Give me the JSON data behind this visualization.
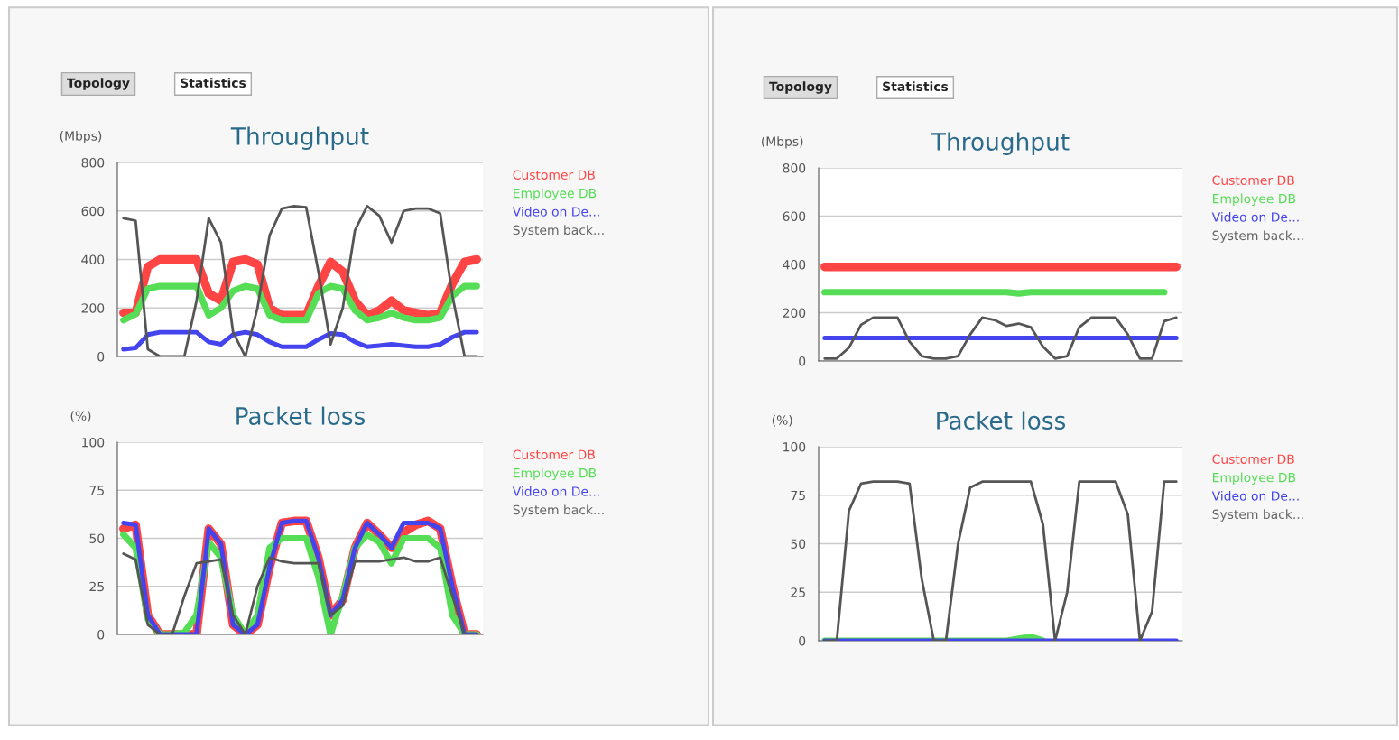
{
  "chart_data": [
    {
      "type": "line",
      "title": "Throughput",
      "ylabel": "(Mbps)",
      "annotations": [
        "Topology",
        "Statistics"
      ],
      "categories": [
        null,
        null,
        null,
        null,
        null,
        null,
        null,
        null,
        null,
        null,
        null,
        null,
        null,
        null,
        null,
        null,
        null,
        null,
        null,
        null,
        null,
        null,
        null,
        null,
        null,
        null,
        null,
        null,
        null,
        null
      ],
      "ylim": [
        0,
        800
      ],
      "yticks": [
        0,
        200,
        400,
        600,
        800
      ],
      "grid": "y",
      "legend": "top right",
      "tick_labels": "y",
      "marker": "none",
      "line_style": "solid",
      "series": [
        {
          "name": "Customer DB",
          "color": "#ff4444",
          "values": [
            180,
            180,
            370,
            400,
            400,
            400,
            400,
            260,
            230,
            390,
            400,
            380,
            200,
            170,
            170,
            170,
            290,
            390,
            350,
            230,
            170,
            190,
            230,
            190,
            180,
            170,
            180,
            300,
            390,
            400
          ]
        },
        {
          "name": "Employee DB",
          "color": "#55dd55",
          "values": [
            150,
            175,
            280,
            290,
            290,
            290,
            290,
            170,
            200,
            270,
            290,
            280,
            170,
            150,
            150,
            150,
            260,
            290,
            280,
            190,
            150,
            160,
            180,
            160,
            150,
            150,
            160,
            250,
            290,
            290
          ]
        },
        {
          "name": "Video on De...",
          "color": "#4444ee",
          "values": [
            30,
            35,
            90,
            100,
            100,
            100,
            100,
            60,
            50,
            90,
            100,
            90,
            60,
            40,
            40,
            40,
            70,
            95,
            90,
            60,
            40,
            45,
            50,
            45,
            40,
            40,
            50,
            80,
            100,
            100
          ]
        },
        {
          "name": "System back...",
          "color": "#555555",
          "values": [
            570,
            560,
            30,
            0,
            0,
            0,
            230,
            570,
            470,
            100,
            0,
            200,
            500,
            610,
            620,
            615,
            350,
            50,
            200,
            520,
            620,
            580,
            470,
            600,
            610,
            610,
            590,
            250,
            0,
            0
          ]
        }
      ]
    },
    {
      "type": "line",
      "title": "Packet loss",
      "ylabel": "(%)",
      "categories": [
        null,
        null,
        null,
        null,
        null,
        null,
        null,
        null,
        null,
        null,
        null,
        null,
        null,
        null,
        null,
        null,
        null,
        null,
        null,
        null,
        null,
        null,
        null,
        null,
        null,
        null,
        null,
        null,
        null,
        null
      ],
      "ylim": [
        0,
        100
      ],
      "yticks": [
        0,
        25,
        50,
        75,
        100
      ],
      "grid": "y",
      "legend": "top right",
      "tick_labels": "y",
      "marker": "none",
      "line_style": "solid",
      "series": [
        {
          "name": "Customer DB",
          "color": "#ff4444",
          "values": [
            55,
            57,
            10,
            0,
            0,
            0,
            0,
            55,
            47,
            5,
            0,
            5,
            35,
            58,
            59,
            59,
            40,
            10,
            18,
            45,
            58,
            52,
            45,
            53,
            57,
            59,
            55,
            25,
            0,
            0
          ]
        },
        {
          "name": "Employee DB",
          "color": "#55dd55",
          "values": [
            52,
            45,
            8,
            0,
            0,
            1,
            10,
            48,
            40,
            10,
            0,
            10,
            45,
            50,
            50,
            50,
            30,
            0,
            20,
            45,
            52,
            48,
            37,
            50,
            50,
            50,
            45,
            10,
            0,
            0
          ]
        },
        {
          "name": "Video on De...",
          "color": "#4444ee",
          "values": [
            58,
            57,
            10,
            0,
            0,
            0,
            0,
            55,
            47,
            5,
            0,
            5,
            35,
            58,
            59,
            59,
            40,
            10,
            18,
            45,
            58,
            52,
            45,
            58,
            58,
            58,
            55,
            25,
            0,
            0
          ]
        },
        {
          "name": "System back...",
          "color": "#555555",
          "values": [
            42,
            39,
            5,
            0,
            0,
            20,
            37,
            38,
            39,
            10,
            0,
            25,
            40,
            38,
            37,
            37,
            37,
            10,
            15,
            38,
            38,
            38,
            39,
            40,
            38,
            38,
            40,
            20,
            0,
            0
          ]
        }
      ]
    },
    {
      "type": "line",
      "title": "Throughput",
      "ylabel": "(Mbps)",
      "annotations": [
        "Topology",
        "Statistics"
      ],
      "categories": [
        null,
        null,
        null,
        null,
        null,
        null,
        null,
        null,
        null,
        null,
        null,
        null,
        null,
        null,
        null,
        null,
        null,
        null,
        null,
        null,
        null,
        null,
        null,
        null,
        null,
        null,
        null,
        null,
        null,
        null
      ],
      "ylim": [
        0,
        800
      ],
      "yticks": [
        0,
        200,
        400,
        600,
        800
      ],
      "grid": "y",
      "legend": "top right",
      "tick_labels": "y",
      "marker": "none",
      "line_style": "solid",
      "series": [
        {
          "name": "Customer DB",
          "color": "#ff4444",
          "values": [
            390,
            390,
            390,
            390,
            390,
            390,
            390,
            390,
            390,
            390,
            390,
            390,
            390,
            390,
            390,
            390,
            390,
            390,
            390,
            390,
            390,
            390,
            390,
            390,
            390,
            390,
            390,
            390,
            390,
            390
          ]
        },
        {
          "name": "Employee DB",
          "color": "#55dd55",
          "values": [
            285,
            285,
            285,
            285,
            285,
            285,
            285,
            285,
            285,
            285,
            285,
            285,
            285,
            285,
            285,
            285,
            280,
            285,
            285,
            285,
            285,
            285,
            285,
            285,
            285,
            285,
            285,
            285,
            285,
            null
          ]
        },
        {
          "name": "Video on De...",
          "color": "#4444ee",
          "values": [
            95,
            95,
            95,
            95,
            95,
            95,
            95,
            95,
            95,
            95,
            95,
            95,
            95,
            95,
            95,
            95,
            95,
            95,
            95,
            95,
            95,
            95,
            95,
            95,
            95,
            95,
            95,
            95,
            95,
            95
          ]
        },
        {
          "name": "System back...",
          "color": "#555555",
          "values": [
            10,
            10,
            55,
            150,
            180,
            180,
            180,
            80,
            20,
            10,
            10,
            20,
            110,
            180,
            170,
            145,
            155,
            140,
            60,
            10,
            20,
            140,
            180,
            180,
            180,
            110,
            10,
            10,
            165,
            180
          ]
        }
      ]
    },
    {
      "type": "line",
      "title": "Packet loss",
      "ylabel": "(%)",
      "categories": [
        null,
        null,
        null,
        null,
        null,
        null,
        null,
        null,
        null,
        null,
        null,
        null,
        null,
        null,
        null,
        null,
        null,
        null,
        null,
        null,
        null,
        null,
        null,
        null,
        null,
        null,
        null,
        null,
        null,
        null
      ],
      "ylim": [
        0,
        100
      ],
      "yticks": [
        0,
        25,
        50,
        75,
        100
      ],
      "grid": "y",
      "legend": "top right",
      "tick_labels": "y",
      "marker": "none",
      "line_style": "solid",
      "series": [
        {
          "name": "Customer DB",
          "color": "#ff4444",
          "values": [
            null,
            null,
            null,
            null,
            null,
            null,
            null,
            null,
            null,
            null,
            null,
            null,
            null,
            null,
            null,
            null,
            null,
            null,
            null,
            null,
            null,
            null,
            null,
            null,
            null,
            null,
            null,
            null,
            null,
            null
          ]
        },
        {
          "name": "Employee DB",
          "color": "#55dd55",
          "values": [
            0,
            0,
            null,
            null,
            null,
            null,
            null,
            null,
            null,
            null,
            null,
            null,
            null,
            null,
            null,
            0,
            1,
            2,
            0,
            null,
            null,
            null,
            null,
            null,
            null,
            null,
            null,
            null,
            null,
            null
          ]
        },
        {
          "name": "Video on De...",
          "color": "#4444ee",
          "values": [
            0,
            0,
            0,
            0,
            0,
            0,
            0,
            0,
            0,
            0,
            0,
            0,
            0,
            0,
            0,
            0,
            0,
            0,
            0,
            0,
            0,
            0,
            0,
            0,
            0,
            0,
            0,
            0,
            0,
            0
          ]
        },
        {
          "name": "System back...",
          "color": "#555555",
          "values": [
            0,
            0,
            67,
            81,
            82,
            82,
            82,
            81,
            32,
            0,
            0,
            50,
            79,
            82,
            82,
            82,
            82,
            82,
            60,
            0,
            25,
            82,
            82,
            82,
            82,
            65,
            0,
            15,
            82,
            82
          ]
        }
      ]
    }
  ]
}
